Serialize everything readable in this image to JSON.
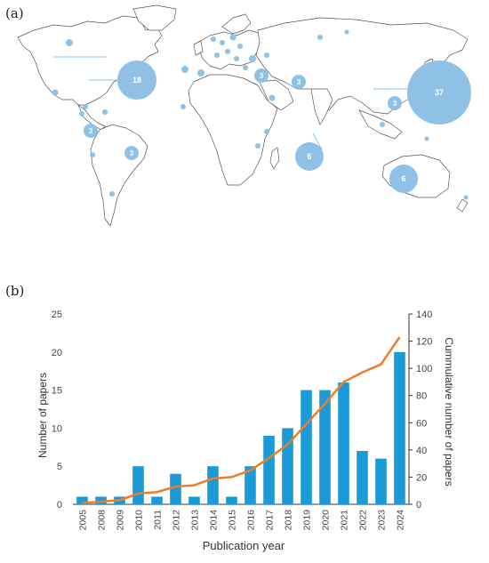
{
  "panels": {
    "a": "(a)",
    "b": "(b)"
  },
  "map": {
    "bubble_color": "#8fc1e6",
    "labeled_bubbles": [
      {
        "value": "37"
      },
      {
        "value": "18"
      },
      {
        "value": "6"
      },
      {
        "value": "6"
      },
      {
        "value": "3"
      },
      {
        "value": "3"
      },
      {
        "value": "3"
      },
      {
        "value": "3"
      },
      {
        "value": "3"
      }
    ]
  },
  "chart_data": {
    "type": "bar+line",
    "title": "",
    "xlabel": "Publication year",
    "ylabel": "Number of papers",
    "y2label": "Cummulative number of papers",
    "categories": [
      "2005",
      "2008",
      "2009",
      "2010",
      "2011",
      "2012",
      "2013",
      "2014",
      "2015",
      "2016",
      "2017",
      "2018",
      "2019",
      "2020",
      "2021",
      "2022",
      "2023",
      "2024"
    ],
    "ylim": [
      0,
      25
    ],
    "yticks": [
      0,
      5,
      10,
      15,
      20,
      25
    ],
    "y2lim": [
      0,
      140
    ],
    "y2ticks": [
      0,
      20,
      40,
      60,
      80,
      100,
      120,
      140
    ],
    "series": [
      {
        "kind": "bar",
        "axis": "left",
        "color": "#1a9bd7",
        "values": [
          1,
          1,
          1,
          5,
          1,
          4,
          1,
          5,
          1,
          5,
          9,
          10,
          15,
          15,
          16,
          7,
          6,
          20
        ]
      },
      {
        "kind": "line",
        "axis": "right",
        "color": "#f07c2a",
        "values": [
          1,
          2,
          3,
          8,
          9,
          13,
          14,
          19,
          20,
          25,
          34,
          44,
          59,
          74,
          90,
          97,
          103,
          123
        ]
      }
    ],
    "grid": false,
    "legend": "none"
  }
}
